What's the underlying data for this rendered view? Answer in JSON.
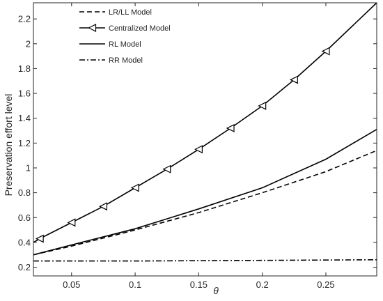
{
  "chart_data": {
    "type": "line",
    "xlabel": "θ",
    "ylabel": "Preservation effort level",
    "xlim": [
      0.02,
      0.29
    ],
    "ylim": [
      0.13,
      2.33
    ],
    "xticks": [
      0.05,
      0.1,
      0.15,
      0.2,
      0.25
    ],
    "xtick_labels": [
      "0.05",
      "0.1",
      "0.15",
      "0.2",
      "0.25"
    ],
    "yticks": [
      0.2,
      0.4,
      0.6,
      0.8,
      1.0,
      1.2,
      1.4,
      1.6,
      1.8,
      2.0,
      2.2
    ],
    "ytick_labels": [
      "0.2",
      "0.4",
      "0.6",
      "0.8",
      "1",
      "1.2",
      "1.4",
      "1.6",
      "1.8",
      "2",
      "2.2"
    ],
    "grid": false,
    "legend_position": "top-left",
    "series": [
      {
        "name": "LR/LL Model",
        "line_style": "dashed",
        "marker": "none",
        "color": "#000000",
        "x": [
          0.02,
          0.05,
          0.1,
          0.15,
          0.2,
          0.25,
          0.29
        ],
        "y": [
          0.3,
          0.37,
          0.5,
          0.64,
          0.8,
          0.97,
          1.14
        ]
      },
      {
        "name": "Centralized Model",
        "line_style": "solid",
        "marker": "left-triangle",
        "color": "#000000",
        "x": [
          0.02,
          0.025,
          0.05,
          0.075,
          0.1,
          0.125,
          0.15,
          0.175,
          0.2,
          0.225,
          0.25,
          0.29
        ],
        "y": [
          0.4,
          0.43,
          0.56,
          0.69,
          0.84,
          0.99,
          1.15,
          1.32,
          1.5,
          1.71,
          1.94,
          2.33
        ],
        "marker_x": [
          0.025,
          0.05,
          0.075,
          0.1,
          0.125,
          0.15,
          0.175,
          0.2,
          0.225,
          0.25
        ]
      },
      {
        "name": "RL Model",
        "line_style": "solid",
        "marker": "none",
        "color": "#000000",
        "x": [
          0.02,
          0.05,
          0.1,
          0.15,
          0.2,
          0.25,
          0.29
        ],
        "y": [
          0.3,
          0.38,
          0.51,
          0.67,
          0.84,
          1.07,
          1.31
        ]
      },
      {
        "name": "RR Model",
        "line_style": "dash-dot",
        "marker": "none",
        "color": "#000000",
        "x": [
          0.02,
          0.1,
          0.2,
          0.29
        ],
        "y": [
          0.25,
          0.25,
          0.255,
          0.26
        ]
      }
    ]
  }
}
